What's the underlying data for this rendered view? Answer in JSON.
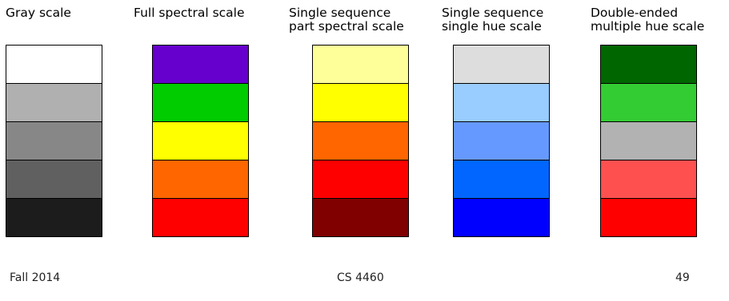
{
  "scales": [
    {
      "id": "gray-scale",
      "title": [
        "Gray scale"
      ],
      "colors": [
        "#ffffff",
        "#b0b0b0",
        "#878787",
        "#606060",
        "#1c1c1c"
      ]
    },
    {
      "id": "full-spectral-scale",
      "title": [
        "Full spectral scale"
      ],
      "colors": [
        "#6600cc",
        "#00cc00",
        "#ffff00",
        "#ff6600",
        "#ff0000"
      ]
    },
    {
      "id": "single-sequence-part-spectral-scale",
      "title": [
        "Single sequence",
        "part spectral scale"
      ],
      "colors": [
        "#ffff99",
        "#ffff00",
        "#ff6600",
        "#ff0000",
        "#800000"
      ]
    },
    {
      "id": "single-sequence-single-hue-scale",
      "title": [
        "Single sequence",
        "single hue scale"
      ],
      "colors": [
        "#dddddd",
        "#99ccff",
        "#6699ff",
        "#0066ff",
        "#0000ff"
      ]
    },
    {
      "id": "double-ended-multiple-hue-scale",
      "title": [
        "Double-ended",
        "multiple hue scale"
      ],
      "colors": [
        "#006600",
        "#33cc33",
        "#b2b2b2",
        "#ff5050",
        "#ff0000"
      ]
    }
  ],
  "footer": {
    "left": "Fall 2014",
    "center": "CS 4460",
    "right": "49"
  }
}
